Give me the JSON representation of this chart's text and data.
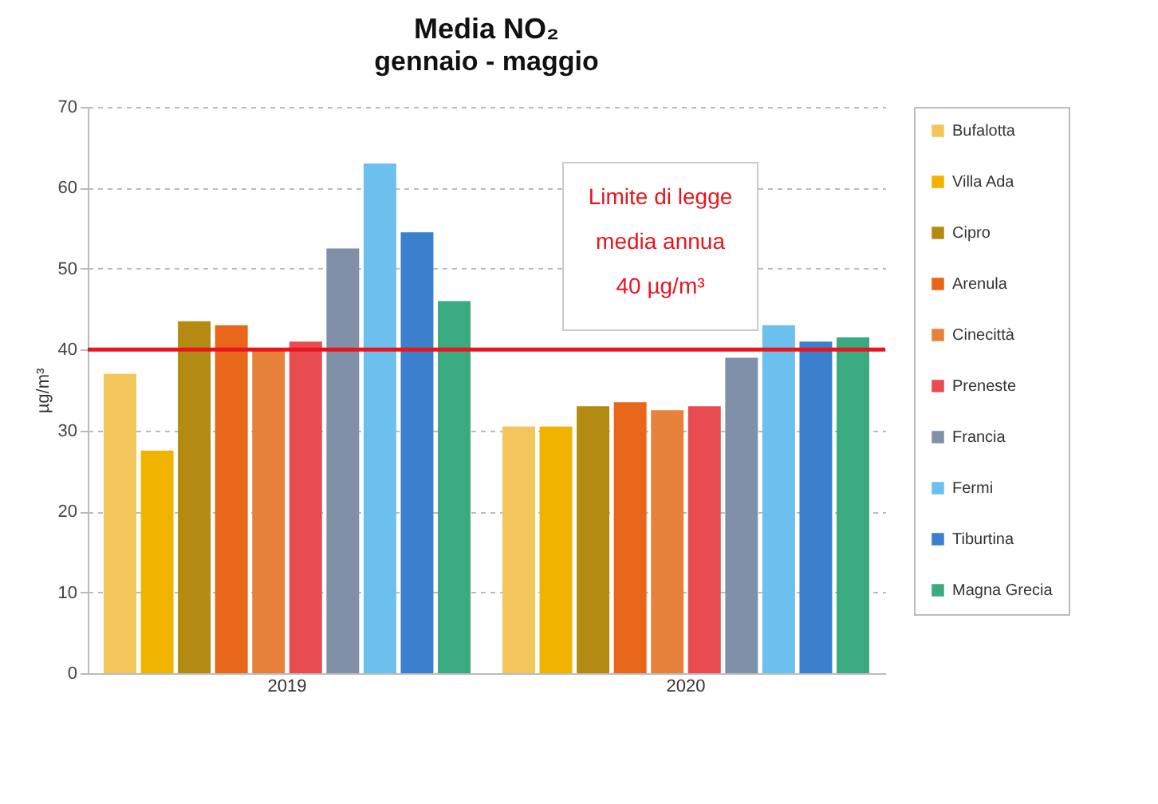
{
  "chart_data": {
    "type": "bar",
    "title": "Media NO₂",
    "subtitle": "gennaio - maggio",
    "ylabel": "µg/m³",
    "categories": [
      "2019",
      "2020"
    ],
    "series": [
      {
        "name": "Bufalotta",
        "color": "#f2c65a",
        "values": [
          37,
          30.5
        ]
      },
      {
        "name": "Villa Ada",
        "color": "#f0b400",
        "values": [
          27.5,
          30.5
        ]
      },
      {
        "name": "Cipro",
        "color": "#b38a12",
        "values": [
          43.5,
          33
        ]
      },
      {
        "name": "Arenula",
        "color": "#e8661a",
        "values": [
          43,
          33.5
        ]
      },
      {
        "name": "Cinecittà",
        "color": "#e8823a",
        "values": [
          40,
          32.5
        ]
      },
      {
        "name": "Preneste",
        "color": "#e84c50",
        "values": [
          41,
          33
        ]
      },
      {
        "name": "Francia",
        "color": "#8090a8",
        "values": [
          52.5,
          39
        ]
      },
      {
        "name": "Fermi",
        "color": "#6cc0ee",
        "values": [
          63,
          43
        ]
      },
      {
        "name": "Tiburtina",
        "color": "#3a80cc",
        "values": [
          54.5,
          41
        ]
      },
      {
        "name": "Magna Grecia",
        "color": "#3aaa80",
        "values": [
          46,
          41.5
        ]
      }
    ],
    "ylim": [
      0,
      70
    ],
    "yticks": [
      0,
      10,
      20,
      30,
      40,
      50,
      60,
      70
    ],
    "grid": "y",
    "legend": "right",
    "ref_lines": [
      {
        "axis": "y",
        "value": 40,
        "label": "Limite di legge\nmedia annua\n40 µg/m³",
        "color": "#e8141e"
      }
    ]
  }
}
